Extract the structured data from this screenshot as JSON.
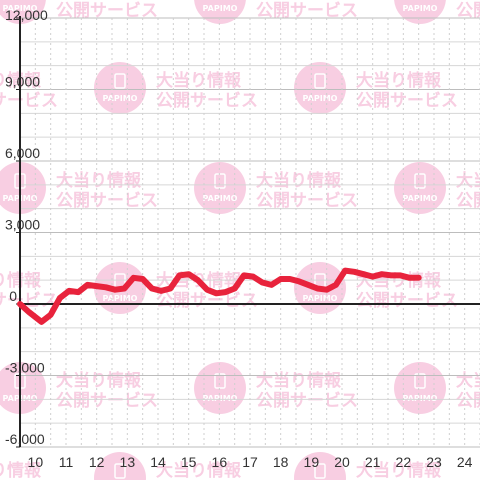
{
  "chart_data": {
    "type": "line",
    "title": "",
    "xlabel": "",
    "ylabel": "",
    "xlim": [
      9.5,
      24.5
    ],
    "ylim": [
      -6000,
      12000
    ],
    "x_ticks": [
      10,
      11,
      12,
      13,
      14,
      15,
      16,
      17,
      18,
      19,
      20,
      21,
      22,
      23,
      24
    ],
    "x_tick_labels": [
      "10",
      "11",
      "12",
      "13",
      "14",
      "15",
      "16",
      "17",
      "18",
      "19",
      "20",
      "21",
      "22",
      "23",
      "24"
    ],
    "y_ticks": [
      -6000,
      -3000,
      0,
      3000,
      6000,
      9000,
      12000
    ],
    "y_tick_labels": [
      "-6,000",
      "-3,000",
      "0",
      "3,000",
      "6,000",
      "9,000",
      "12,000"
    ],
    "grid": true,
    "legend": "none",
    "series": [
      {
        "color": "#e8233c",
        "x": [
          9.5,
          9.8,
          10.2,
          10.5,
          10.8,
          11.1,
          11.4,
          11.7,
          12.0,
          12.3,
          12.6,
          12.9,
          13.2,
          13.5,
          13.8,
          14.1,
          14.4,
          14.7,
          15.0,
          15.3,
          15.6,
          15.9,
          16.2,
          16.5,
          16.8,
          17.1,
          17.4,
          17.7,
          18.0,
          18.3,
          18.6,
          18.9,
          19.2,
          19.5,
          19.8,
          20.1,
          20.4,
          20.7,
          21.0,
          21.3,
          21.6,
          21.9,
          22.2,
          22.5
        ],
        "values": [
          0,
          -350,
          -750,
          -450,
          250,
          550,
          500,
          800,
          750,
          700,
          600,
          650,
          1100,
          1050,
          650,
          550,
          650,
          1200,
          1250,
          1000,
          600,
          450,
          500,
          650,
          1200,
          1150,
          900,
          800,
          1050,
          1050,
          950,
          800,
          650,
          600,
          800,
          1400,
          1350,
          1250,
          1150,
          1250,
          1200,
          1200,
          1100,
          1100
        ]
      }
    ]
  },
  "watermark": {
    "line1": "大当り情報",
    "line2": "公開サービス",
    "badge_text": "PAPIMO",
    "color": "#f7c6dd"
  }
}
